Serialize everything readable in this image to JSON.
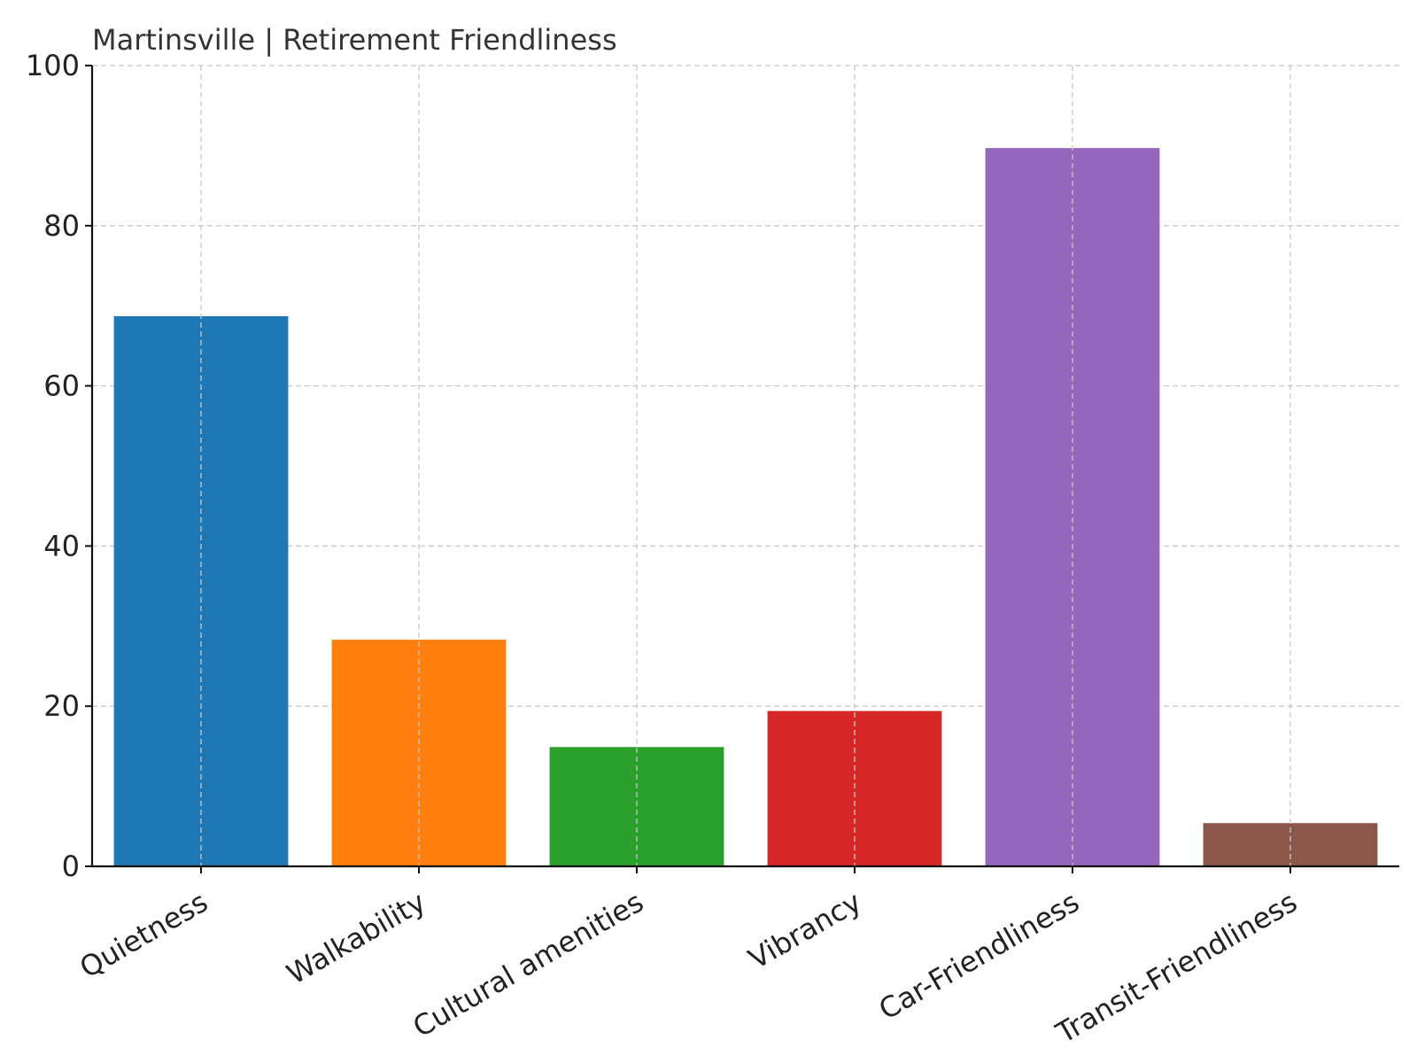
{
  "chart_data": {
    "type": "bar",
    "title": "Martinsville | Retirement Friendliness",
    "categories": [
      "Quietness",
      "Walkability",
      "Cultural amenities",
      "Vibrancy",
      "Car-Friendliness",
      "Transit-Friendliness"
    ],
    "values": [
      68.7,
      28.3,
      14.9,
      19.4,
      89.7,
      5.4
    ],
    "colors": [
      "#1f77b4",
      "#ff7f0e",
      "#2ca02c",
      "#d62728",
      "#9467bd",
      "#8c564b"
    ],
    "xlabel": "",
    "ylabel": "",
    "ylim": [
      0,
      100
    ],
    "yticks": [
      0,
      20,
      40,
      60,
      80,
      100
    ],
    "grid": true
  }
}
